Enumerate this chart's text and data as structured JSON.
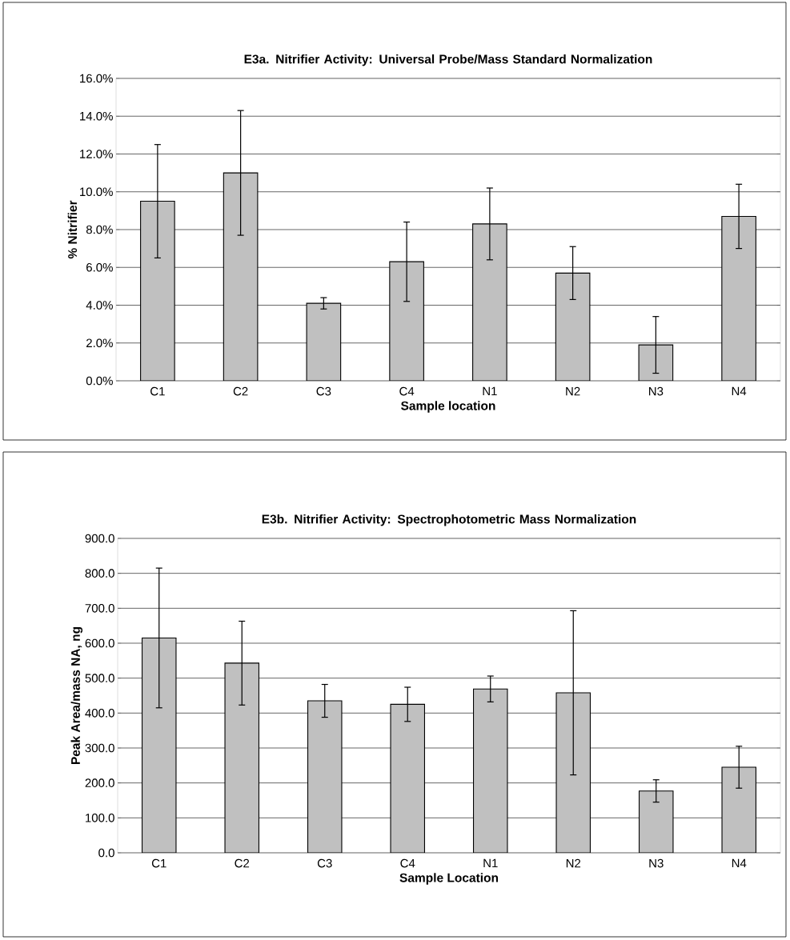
{
  "chart_data": [
    {
      "type": "bar",
      "title": "E3a.  Nitrifier Activity: Universal Probe/Mass Standard Normalization",
      "xlabel": "Sample location",
      "ylabel": "% Nitrifier",
      "categories": [
        "C1",
        "C2",
        "C3",
        "C4",
        "N1",
        "N2",
        "N3",
        "N4"
      ],
      "values": [
        9.5,
        11.0,
        4.1,
        6.3,
        8.3,
        5.7,
        1.9,
        8.7
      ],
      "errors": [
        3.0,
        3.3,
        0.3,
        2.1,
        1.9,
        1.4,
        1.5,
        1.7
      ],
      "color": "#c0c0c0",
      "ylim": [
        0,
        16
      ],
      "grid": "y",
      "yticks": [
        {
          "value": 0,
          "label": "0.0%"
        },
        {
          "value": 2,
          "label": "2.0%"
        },
        {
          "value": 4,
          "label": "4.0%"
        },
        {
          "value": 6,
          "label": "6.0%"
        },
        {
          "value": 8,
          "label": "8.0%"
        },
        {
          "value": 10,
          "label": "10.0%"
        },
        {
          "value": 12,
          "label": "12.0%"
        },
        {
          "value": 14,
          "label": "14.0%"
        },
        {
          "value": 16,
          "label": "16.0%"
        }
      ]
    },
    {
      "type": "bar",
      "title": "E3b.  Nitrifier Activity:  Spectrophotometric Mass Normalization",
      "xlabel": "Sample Location",
      "ylabel": "Peak Area/mass NA, ng",
      "categories": [
        "C1",
        "C2",
        "C3",
        "C4",
        "N1",
        "N2",
        "N3",
        "N4"
      ],
      "values": [
        615,
        543,
        435,
        425,
        469,
        458,
        177,
        245
      ],
      "errors": [
        200,
        120,
        47,
        49,
        37,
        235,
        32,
        60
      ],
      "color": "#c0c0c0",
      "ylim": [
        0,
        900
      ],
      "grid": "y",
      "yticks": [
        {
          "value": 0,
          "label": "0.0"
        },
        {
          "value": 100,
          "label": "100.0"
        },
        {
          "value": 200,
          "label": "200.0"
        },
        {
          "value": 300,
          "label": "300.0"
        },
        {
          "value": 400,
          "label": "400.0"
        },
        {
          "value": 500,
          "label": "500.0"
        },
        {
          "value": 600,
          "label": "600.0"
        },
        {
          "value": 700,
          "label": "700.0"
        },
        {
          "value": 800,
          "label": "800.0"
        },
        {
          "value": 900,
          "label": "900.0"
        }
      ]
    }
  ]
}
